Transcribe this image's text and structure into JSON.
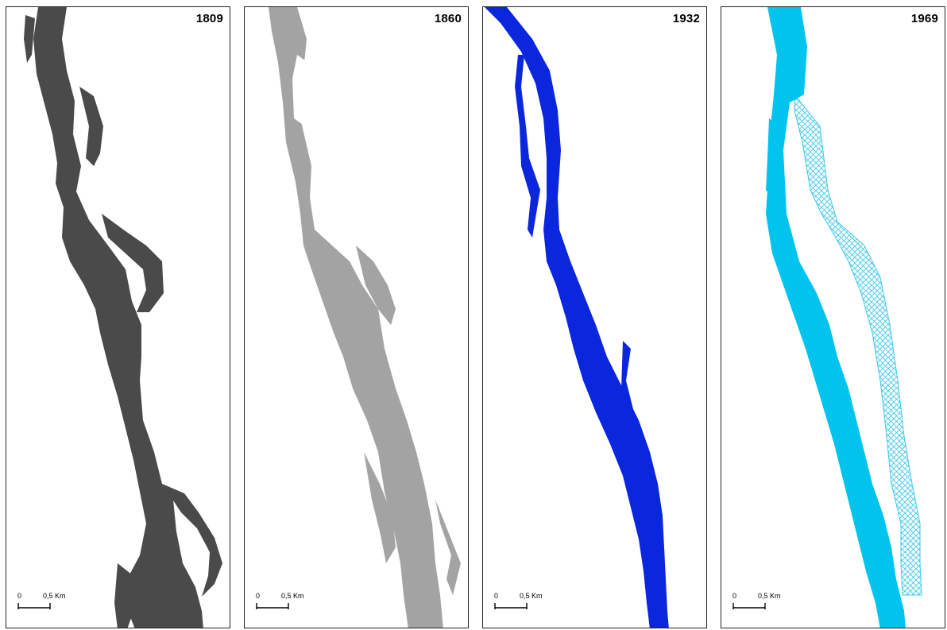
{
  "panels": [
    {
      "year": "1809",
      "color": "#4a4a4a",
      "style": "braided"
    },
    {
      "year": "1860",
      "color": "#a3a3a3",
      "style": "channels"
    },
    {
      "year": "1932",
      "color": "#0a27dd",
      "style": "narrow"
    },
    {
      "year": "1969",
      "color": "#00c3ee",
      "style": "regulated",
      "hatch_color": "#3fc8ea"
    }
  ],
  "scalebar": {
    "zero": "0",
    "label": "0,5 Km"
  }
}
